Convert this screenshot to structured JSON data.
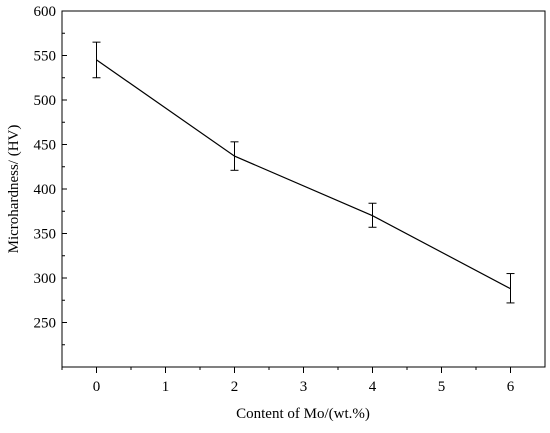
{
  "chart_data": {
    "type": "line",
    "title": "",
    "xlabel": "Content of Mo/(wt.%)",
    "ylabel": "Microhardness/ (HV)",
    "xlim": [
      -0.5,
      6.5
    ],
    "ylim": [
      200,
      600
    ],
    "x_ticks": [
      0,
      1,
      2,
      3,
      4,
      5,
      6
    ],
    "y_ticks": [
      250,
      300,
      350,
      400,
      450,
      500,
      550,
      600
    ],
    "grid": false,
    "legend": "none",
    "series": [
      {
        "x": [
          0,
          2,
          4,
          6
        ],
        "y": [
          545,
          437,
          370,
          288
        ],
        "error_low": [
          525,
          421,
          357,
          272
        ],
        "error_high": [
          565,
          453,
          384,
          305
        ],
        "color": "#000000"
      }
    ]
  }
}
